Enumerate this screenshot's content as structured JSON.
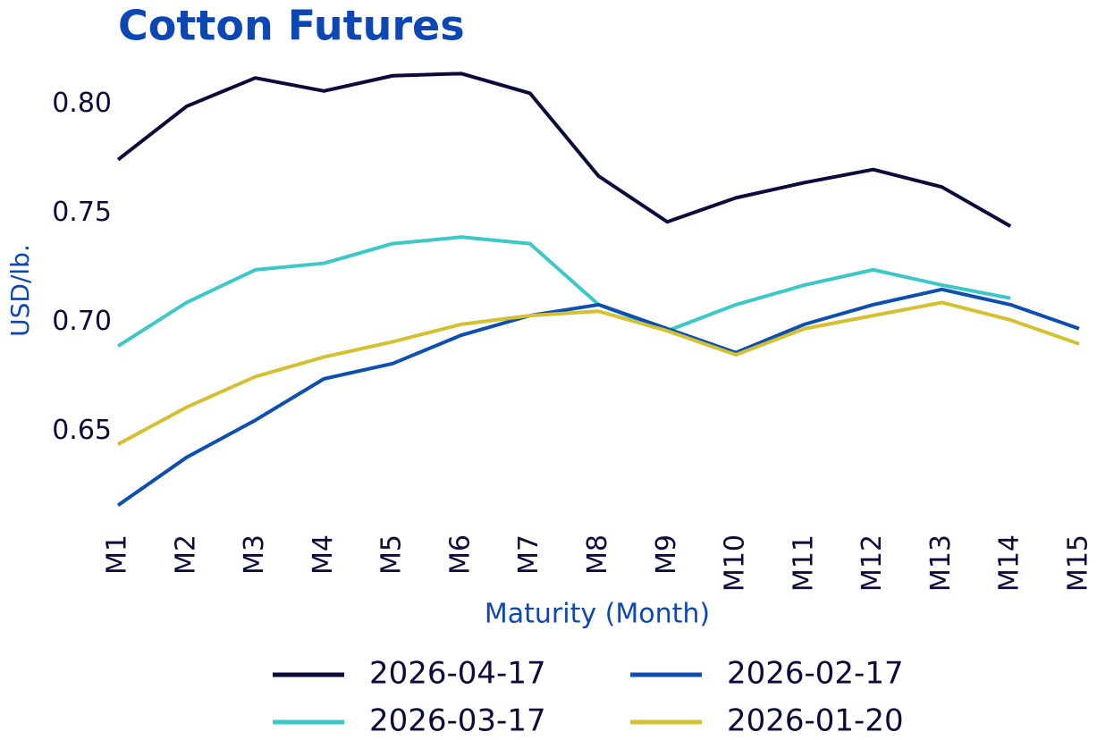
{
  "chart_data": {
    "type": "line",
    "title": "Cotton Futures",
    "x_label": "Maturity (Month)",
    "y_label": "USD/lb.",
    "categories": [
      "M1",
      "M2",
      "M3",
      "M4",
      "M5",
      "M6",
      "M7",
      "M8",
      "M9",
      "M10",
      "M11",
      "M12",
      "M13",
      "M14",
      "M15"
    ],
    "ylim": [
      0.61,
      0.817
    ],
    "yticks": [
      {
        "value": 0.65,
        "label": "0.65"
      },
      {
        "value": 0.7,
        "label": "0.70"
      },
      {
        "value": 0.75,
        "label": "0.75"
      },
      {
        "value": 0.8,
        "label": "0.80"
      }
    ],
    "grid": false,
    "legend_position": "bottom",
    "series": [
      {
        "name": "2026-04-17",
        "color": "#0b0b3b",
        "values": [
          0.7745,
          0.799,
          0.812,
          0.806,
          0.813,
          0.814,
          0.805,
          0.767,
          0.746,
          0.757,
          0.764,
          0.77,
          0.762,
          0.744,
          null
        ]
      },
      {
        "name": "2026-03-17",
        "color": "#3cc8c8",
        "values": [
          0.689,
          0.709,
          0.724,
          0.727,
          0.736,
          0.739,
          0.736,
          0.708,
          0.696,
          0.708,
          0.717,
          0.724,
          0.717,
          0.711,
          null
        ]
      },
      {
        "name": "2026-02-17",
        "color": "#0d4fb0",
        "values": [
          0.616,
          0.638,
          0.655,
          0.674,
          0.681,
          0.694,
          0.703,
          0.708,
          0.697,
          0.686,
          0.699,
          0.708,
          0.715,
          0.708,
          0.697
        ]
      },
      {
        "name": "2026-01-20",
        "color": "#d4c030",
        "values": [
          0.644,
          0.661,
          0.675,
          0.684,
          0.691,
          0.699,
          0.703,
          0.705,
          0.696,
          0.685,
          0.697,
          0.703,
          0.709,
          0.701,
          0.69
        ]
      }
    ]
  }
}
